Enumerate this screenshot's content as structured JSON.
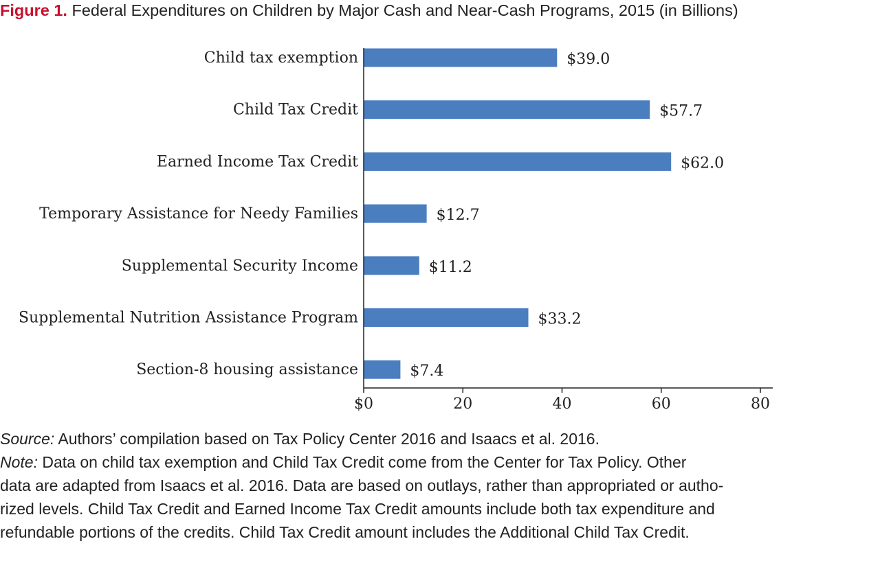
{
  "title": {
    "figure_label": "Figure 1.",
    "text": " Federal Expenditures on Children by Major Cash and Near-Cash Programs, 2015 (in Billions)"
  },
  "chart_data": {
    "type": "bar",
    "orientation": "horizontal",
    "categories": [
      "Child tax exemption",
      "Child Tax Credit",
      "Earned Income Tax Credit",
      "Temporary Assistance for Needy Families",
      "Supplemental Security Income",
      "Supplemental Nutrition Assistance Program",
      "Section-8 housing assistance"
    ],
    "values": [
      39.0,
      57.7,
      62.0,
      12.7,
      11.2,
      33.2,
      7.4
    ],
    "value_labels": [
      "$39.0",
      "$57.7",
      "$62.0",
      "$12.7",
      "$11.2",
      "$33.2",
      "$7.4"
    ],
    "xlim": [
      0,
      80
    ],
    "xticks": [
      0,
      20,
      40,
      60,
      80
    ],
    "xtick_labels": [
      "$0",
      "20",
      "40",
      "60",
      "80"
    ],
    "bar_color": "#4a7ebf",
    "grid": false
  },
  "notes": {
    "source_head": "Source:",
    "source_text": " Authors’ compilation based on Tax Policy Center 2016 and Isaacs et al. 2016.",
    "note_head": "Note:",
    "note_line1": " Data on child tax exemption and Child Tax Credit come from the Center for Tax Policy. Other",
    "note_line2": "data are adapted from Isaacs et al. 2016. Data are based on outlays, rather than appropriated or autho-",
    "note_line3": "rized levels. Child Tax Credit and Earned Income Tax Credit amounts include both tax expenditure and",
    "note_line4": "refundable portions of the credits. Child Tax Credit amount includes the Additional Child Tax Credit."
  }
}
